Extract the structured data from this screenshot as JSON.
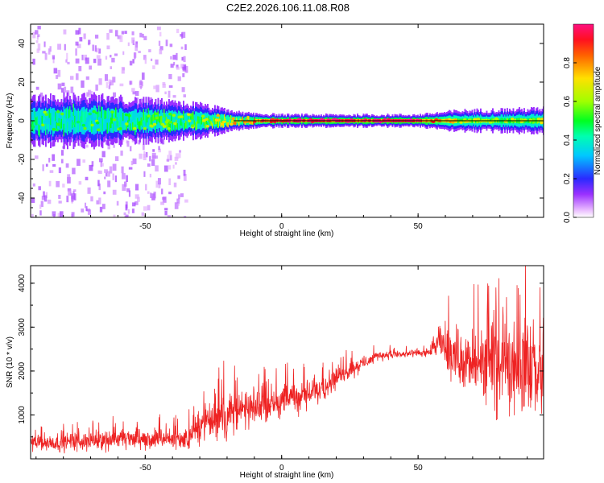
{
  "figure_title": "C2E2.2026.106.11.08.R08",
  "colors": {
    "snr_line": "#ee2222",
    "background": "#ffffff",
    "axis": "#000000",
    "center_line": "#000000"
  },
  "chart_data": [
    {
      "type": "heatmap",
      "name": "spectrogram",
      "xlabel": "Height of straight line (km)",
      "ylabel": "Frequency (Hz)",
      "xlim": [
        -92,
        96
      ],
      "ylim": [
        -50,
        50
      ],
      "xticks": [
        -50,
        0,
        50
      ],
      "xtick_labels": [
        "-50",
        "0",
        "50"
      ],
      "yticks": [
        -40,
        -20,
        0,
        20,
        40
      ],
      "ytick_labels": [
        "-40",
        "-20",
        "0",
        "20",
        "40"
      ],
      "center_frequency": 0,
      "colorbar": {
        "label": "Normalized spectral amplitude",
        "range": [
          0,
          1
        ],
        "ticks": [
          0.0,
          0.2,
          0.4,
          0.6,
          0.8
        ],
        "tick_labels": [
          "0.0",
          "0.2",
          "0.4",
          "0.6",
          "0.8"
        ],
        "colormap": "hsv (magenta-blue-cyan-green-yellow-red)"
      },
      "band_profile": [
        {
          "x": -92,
          "half_width_hz": 12,
          "peak_amplitude": 0.45
        },
        {
          "x": -70,
          "half_width_hz": 12,
          "peak_amplitude": 0.45
        },
        {
          "x": -50,
          "half_width_hz": 10,
          "peak_amplitude": 0.5
        },
        {
          "x": -30,
          "half_width_hz": 8,
          "peak_amplitude": 0.55
        },
        {
          "x": -15,
          "half_width_hz": 4,
          "peak_amplitude": 0.75
        },
        {
          "x": 0,
          "half_width_hz": 3,
          "peak_amplitude": 0.9
        },
        {
          "x": 50,
          "half_width_hz": 3,
          "peak_amplitude": 0.95
        },
        {
          "x": 65,
          "half_width_hz": 5,
          "peak_amplitude": 0.6
        },
        {
          "x": 96,
          "half_width_hz": 6,
          "peak_amplitude": 0.55
        }
      ],
      "scatter_region": {
        "x_range": [
          -92,
          -35
        ],
        "frequency_range_hz": [
          -50,
          50
        ],
        "amplitude": 0.1
      }
    },
    {
      "type": "line",
      "name": "snr",
      "xlabel": "Height of straight line (km)",
      "ylabel": "SNR (10 * v/v)",
      "xlim": [
        -92,
        96
      ],
      "ylim": [
        0,
        4400
      ],
      "xticks": [
        -50,
        0,
        50
      ],
      "xtick_labels": [
        "-50",
        "0",
        "50"
      ],
      "yticks": [
        1000,
        2000,
        3000,
        4000
      ],
      "ytick_labels": [
        "1000",
        "2000",
        "3000",
        "4000"
      ],
      "envelope": [
        {
          "x": -92,
          "mean": 350,
          "noise": 280
        },
        {
          "x": -60,
          "mean": 450,
          "noise": 330
        },
        {
          "x": -35,
          "mean": 450,
          "noise": 350
        },
        {
          "x": -30,
          "mean": 750,
          "noise": 500
        },
        {
          "x": -22,
          "mean": 1000,
          "noise": 750
        },
        {
          "x": -10,
          "mean": 1150,
          "noise": 550
        },
        {
          "x": 0,
          "mean": 1350,
          "noise": 500
        },
        {
          "x": 10,
          "mean": 1450,
          "noise": 450
        },
        {
          "x": 20,
          "mean": 1850,
          "noise": 350
        },
        {
          "x": 35,
          "mean": 2350,
          "noise": 150
        },
        {
          "x": 50,
          "mean": 2400,
          "noise": 130
        },
        {
          "x": 54,
          "mean": 2420,
          "noise": 160
        },
        {
          "x": 58,
          "mean": 2650,
          "noise": 600
        },
        {
          "x": 70,
          "mean": 2100,
          "noise": 1100
        },
        {
          "x": 85,
          "mean": 2200,
          "noise": 1500
        },
        {
          "x": 96,
          "mean": 1900,
          "noise": 1500
        }
      ]
    }
  ]
}
